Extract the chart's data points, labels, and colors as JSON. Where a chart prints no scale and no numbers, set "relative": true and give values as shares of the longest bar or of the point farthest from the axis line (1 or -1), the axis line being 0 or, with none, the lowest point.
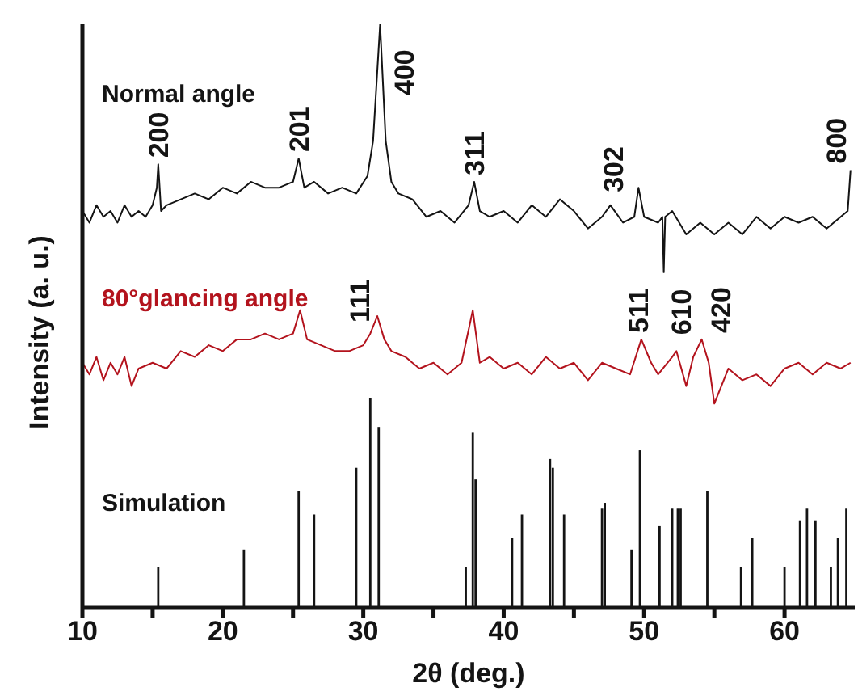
{
  "chart_data": {
    "type": "line",
    "relative": true,
    "xlabel": "2θ (deg.)",
    "ylabel": "Intensity (a. u.)",
    "xlim": [
      10,
      65
    ],
    "xticks": [
      10,
      {
        "value": 15,
        "label": null
      },
      20,
      {
        "value": 25,
        "label": null
      },
      30,
      {
        "value": 35,
        "label": null
      },
      40,
      {
        "value": 45,
        "label": null
      },
      50,
      {
        "value": 55,
        "label": null
      },
      60
    ],
    "legend": false,
    "grid": false,
    "series": [
      {
        "name": "Normal angle",
        "color": "#141414",
        "x": [
          10,
          10.5,
          11,
          11.5,
          12,
          12.5,
          13,
          13.5,
          14,
          14.5,
          15,
          15.3,
          15.4,
          15.6,
          16,
          17,
          18,
          19,
          20,
          21,
          22,
          23,
          24,
          25,
          25.4,
          25.8,
          26.5,
          27.5,
          28.5,
          29.5,
          30.3,
          30.7,
          31.2,
          31.6,
          32,
          32.5,
          33.5,
          34.5,
          35.5,
          36.5,
          37.5,
          37.9,
          38.3,
          39,
          40,
          41,
          42,
          43,
          44,
          45,
          46,
          47,
          47.6,
          48.5,
          49.3,
          49.6,
          50,
          51,
          51.3,
          51.4,
          51.5,
          52,
          53,
          54,
          55,
          56,
          57,
          58,
          59,
          60,
          61,
          62,
          63,
          64,
          64.5,
          64.7
        ],
        "values": [
          0.68,
          0.66,
          0.69,
          0.67,
          0.68,
          0.66,
          0.69,
          0.67,
          0.68,
          0.67,
          0.69,
          0.72,
          0.76,
          0.68,
          0.69,
          0.7,
          0.71,
          0.7,
          0.72,
          0.71,
          0.73,
          0.72,
          0.72,
          0.73,
          0.77,
          0.72,
          0.73,
          0.71,
          0.72,
          0.71,
          0.74,
          0.8,
          1.0,
          0.8,
          0.73,
          0.71,
          0.7,
          0.67,
          0.68,
          0.66,
          0.69,
          0.73,
          0.68,
          0.67,
          0.68,
          0.66,
          0.69,
          0.67,
          0.7,
          0.68,
          0.65,
          0.67,
          0.69,
          0.66,
          0.67,
          0.72,
          0.67,
          0.66,
          0.67,
          0.575,
          0.67,
          0.68,
          0.64,
          0.66,
          0.64,
          0.66,
          0.64,
          0.67,
          0.65,
          0.67,
          0.66,
          0.67,
          0.65,
          0.67,
          0.68,
          0.75
        ]
      },
      {
        "name": "80°glancing angle",
        "color": "#b3131d",
        "x": [
          10,
          10.5,
          11,
          11.5,
          12,
          12.5,
          13,
          13.5,
          14,
          15,
          16,
          17,
          18,
          19,
          20,
          21,
          22,
          23,
          24,
          25,
          25.5,
          26,
          27,
          28,
          29,
          30,
          30.5,
          31,
          31.5,
          32,
          33,
          34,
          35,
          36,
          37,
          37.8,
          38.3,
          39,
          40,
          41,
          42,
          43,
          44,
          45,
          46,
          47,
          48,
          49,
          49.8,
          50.5,
          51,
          52,
          52.3,
          53,
          53.5,
          54.1,
          54.6,
          55,
          56,
          57,
          58,
          59,
          60,
          61,
          62,
          63,
          64,
          64.7
        ],
        "values": [
          0.42,
          0.4,
          0.43,
          0.39,
          0.42,
          0.4,
          0.43,
          0.38,
          0.41,
          0.42,
          0.41,
          0.44,
          0.43,
          0.45,
          0.44,
          0.46,
          0.46,
          0.47,
          0.46,
          0.47,
          0.51,
          0.46,
          0.45,
          0.44,
          0.44,
          0.45,
          0.47,
          0.5,
          0.46,
          0.44,
          0.43,
          0.41,
          0.42,
          0.4,
          0.42,
          0.51,
          0.42,
          0.43,
          0.41,
          0.42,
          0.4,
          0.43,
          0.41,
          0.42,
          0.39,
          0.42,
          0.41,
          0.4,
          0.46,
          0.42,
          0.4,
          0.43,
          0.44,
          0.38,
          0.43,
          0.46,
          0.42,
          0.35,
          0.41,
          0.39,
          0.4,
          0.38,
          0.41,
          0.42,
          0.4,
          0.42,
          0.41,
          0.42
        ]
      },
      {
        "name": "Simulation",
        "type": "bar",
        "color": "#141414",
        "x": [
          15.4,
          21.5,
          25.4,
          26.5,
          29.5,
          30.5,
          31.1,
          37.3,
          37.8,
          38.0,
          40.6,
          41.3,
          43.3,
          43.5,
          44.3,
          47.0,
          47.2,
          49.1,
          49.7,
          51.1,
          52.0,
          52.4,
          52.6,
          54.5,
          56.9,
          57.7,
          60.0,
          61.1,
          61.6,
          62.2,
          63.3,
          63.8,
          64.4
        ],
        "values": [
          0.07,
          0.1,
          0.2,
          0.16,
          0.24,
          0.36,
          0.31,
          0.07,
          0.3,
          0.22,
          0.12,
          0.16,
          0.255,
          0.24,
          0.16,
          0.17,
          0.18,
          0.1,
          0.27,
          0.14,
          0.17,
          0.17,
          0.17,
          0.2,
          0.07,
          0.12,
          0.07,
          0.15,
          0.17,
          0.15,
          0.07,
          0.12,
          0.17
        ]
      }
    ],
    "annotations": [
      {
        "text": "200",
        "x": 15.4,
        "y": 0.76
      },
      {
        "text": "201",
        "x": 25.4,
        "y": 0.77
      },
      {
        "text": "400",
        "x": 31.2,
        "y": 1.0
      },
      {
        "text": "311",
        "x": 37.9,
        "y": 0.73
      },
      {
        "text": "302",
        "x": 47.6,
        "y": 0.69
      },
      {
        "text": "800",
        "x": 64.7,
        "y": 0.75
      },
      {
        "text": "111",
        "x": 31,
        "y": 0.5
      },
      {
        "text": "511",
        "x": 49.8,
        "y": 0.46
      },
      {
        "text": "610",
        "x": 52.3,
        "y": 0.44
      },
      {
        "text": "420",
        "x": 54.1,
        "y": 0.46
      }
    ]
  }
}
